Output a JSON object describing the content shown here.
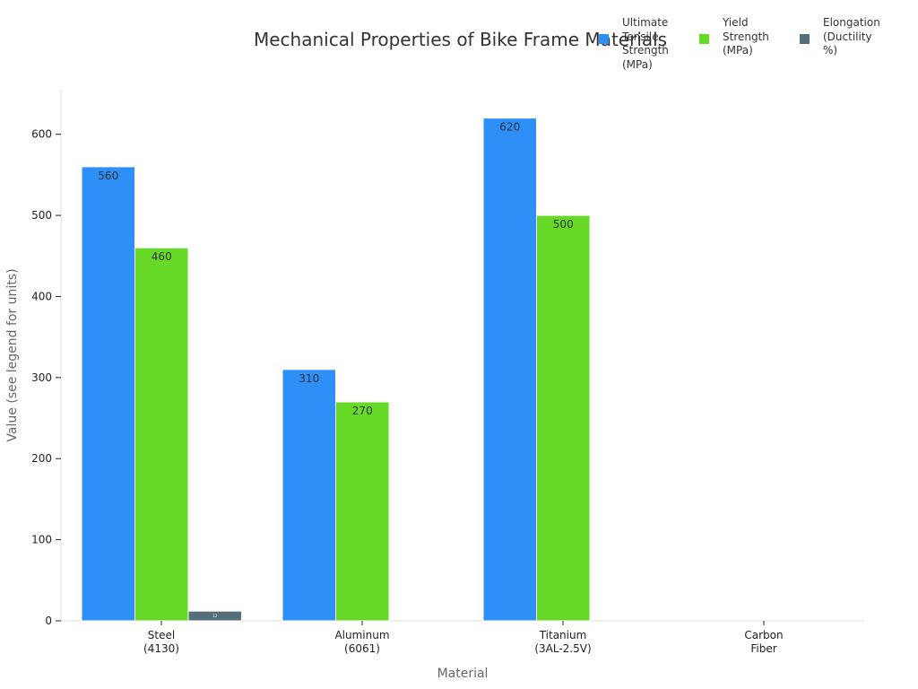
{
  "chart_data": {
    "type": "bar",
    "title": "Mechanical Properties of Bike Frame Materials",
    "xlabel": "Material",
    "ylabel": "Value (see legend for units)",
    "categories": [
      "Steel\n(4130)",
      "Aluminum\n(6061)",
      "Titanium\n(3AL-2.5V)",
      "Carbon\nFiber"
    ],
    "series": [
      {
        "name": "Ultimate\nTensile\nStrength\n(MPa)",
        "color": "#2e8ff7",
        "values": [
          560,
          310,
          620,
          0
        ],
        "labels": [
          "560",
          "310",
          "620",
          ""
        ]
      },
      {
        "name": "Yield\nStrength\n(MPa)",
        "color": "#66da26",
        "values": [
          460,
          270,
          500,
          0
        ],
        "labels": [
          "460",
          "270",
          "500",
          ""
        ]
      },
      {
        "name": "Elongation\n(Ductility\n%)",
        "color": "#546e7a",
        "values": [
          12,
          0,
          0,
          0
        ],
        "labels": [
          "12",
          "",
          "",
          ""
        ]
      }
    ],
    "yticks": [
      0,
      100,
      200,
      300,
      400,
      500,
      600
    ],
    "ylim": [
      0,
      655
    ],
    "grid": false,
    "legend": "top-right"
  }
}
